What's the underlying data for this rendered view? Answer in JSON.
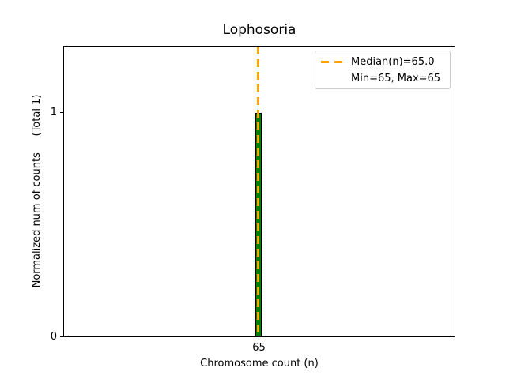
{
  "figure": {
    "background_color": "#ffffff",
    "text_color": "#000000"
  },
  "chart_data": {
    "type": "bar",
    "title": "Lophosoria",
    "xlabel": "Chromosome count (n)",
    "ylabel": "Normalized num of counts     (Total 1)",
    "categories": [
      65
    ],
    "values": [
      1
    ],
    "total_counts": 1,
    "xticks": [
      "65"
    ],
    "yticks": [
      "0",
      "1"
    ],
    "ylim": [
      0,
      1.3
    ],
    "grid": false,
    "bar_fill_color": "#008000",
    "bar_edge_color": "#000000",
    "median_line": {
      "value": 65.0,
      "color": "#FFA500",
      "style": "dashed",
      "orientation": "vertical"
    },
    "min": 65,
    "max": 65,
    "legend": {
      "position": "upper right",
      "entries": [
        {
          "label": "Median(n)=65.0",
          "marker": "dashed-line",
          "color": "#FFA500"
        },
        {
          "label": "Min=65, Max=65",
          "marker": "none",
          "color": null
        }
      ]
    }
  }
}
